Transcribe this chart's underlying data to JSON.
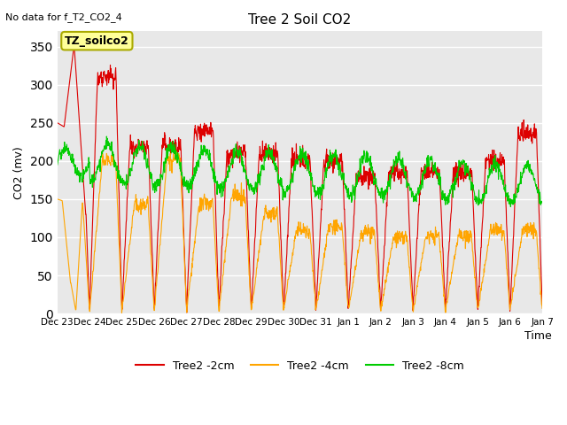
{
  "title": "Tree 2 Soil CO2",
  "no_data_text": "No data for f_T2_CO2_4",
  "ylabel": "CO2 (mv)",
  "xlabel": "Time",
  "xlabels": [
    "Dec 23",
    "Dec 24",
    "Dec 25",
    "Dec 26",
    "Dec 27",
    "Dec 28",
    "Dec 29",
    "Dec 30",
    "Dec 31",
    "Jan 1",
    "Jan 2",
    "Jan 3",
    "Jan 4",
    "Jan 5",
    "Jan 6",
    "Jan 7"
  ],
  "ylim": [
    0,
    370
  ],
  "yticks": [
    0,
    50,
    100,
    150,
    200,
    250,
    300,
    350
  ],
  "colors": {
    "red": "#DD0000",
    "orange": "#FFA500",
    "green": "#00CC00",
    "axes_bg": "#E8E8E8"
  },
  "legend_labels": [
    "Tree2 -2cm",
    "Tree2 -4cm",
    "Tree2 -8cm"
  ],
  "annotation_box": "TZ_soilco2",
  "annotation_box_color": "#FFFF99",
  "annotation_box_border": "#AAAA00"
}
